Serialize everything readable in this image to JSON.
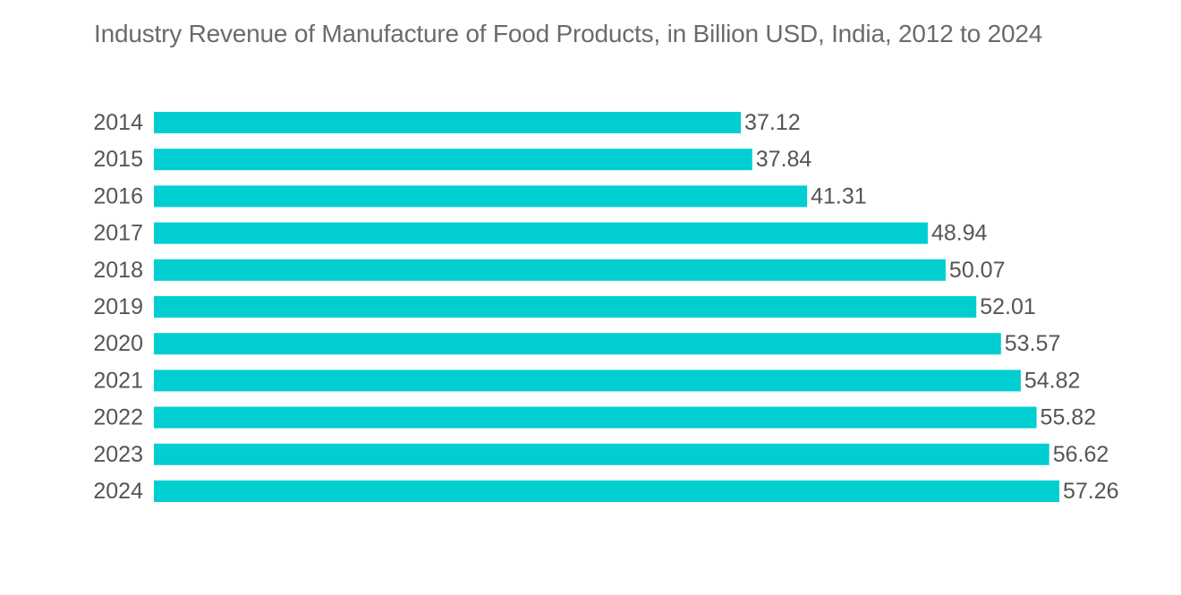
{
  "chart_data": {
    "type": "bar",
    "orientation": "horizontal",
    "title": "Industry Revenue of Manufacture of Food Products, in Billion USD, India, 2012 to 2024",
    "xlabel": "",
    "ylabel": "",
    "categories": [
      "2014",
      "2015",
      "2016",
      "2017",
      "2018",
      "2019",
      "2020",
      "2021",
      "2022",
      "2023",
      "2024"
    ],
    "values": [
      37.12,
      37.84,
      41.31,
      48.94,
      50.07,
      52.01,
      53.57,
      54.82,
      55.82,
      56.62,
      57.26
    ],
    "value_labels": [
      "37.12",
      "37.84",
      "41.31",
      "48.94",
      "50.07",
      "52.01",
      "53.57",
      "54.82",
      "55.82",
      "56.62",
      "57.26"
    ],
    "xlim": [
      0,
      57.26
    ],
    "grid": false,
    "legend": "none",
    "bar_color": "#00CED1"
  }
}
